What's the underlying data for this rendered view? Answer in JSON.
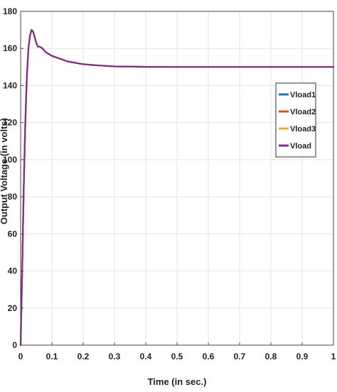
{
  "chart_data": {
    "type": "line",
    "title": "",
    "xlabel": "Time (in sec.)",
    "ylabel": "Output Voltage (in volts)",
    "xlim": [
      0,
      1
    ],
    "ylim": [
      0,
      180
    ],
    "xticks": [
      "0",
      "0.1",
      "0.2",
      "0.3",
      "0.4",
      "0.5",
      "0.6",
      "0.7",
      "0.8",
      "0.9",
      "1"
    ],
    "yticks": [
      "0",
      "20",
      "40",
      "60",
      "80",
      "100",
      "120",
      "140",
      "160",
      "180"
    ],
    "grid": true,
    "legend_position": "right",
    "series": [
      {
        "name": "Vload1",
        "color": "#1f77b4",
        "x": [
          0,
          0.005,
          0.01,
          0.015,
          0.02,
          0.025,
          0.03,
          0.035,
          0.04,
          0.045,
          0.05,
          0.055,
          0.06,
          0.07,
          0.08,
          0.1,
          0.15,
          0.2,
          0.25,
          0.3,
          0.4,
          0.5,
          0.6,
          0.7,
          0.8,
          0.9,
          1.0
        ],
        "y": [
          0,
          40,
          85,
          120,
          145,
          160,
          167,
          170,
          169,
          166,
          163,
          161,
          161,
          160,
          158,
          156,
          153,
          151.5,
          150.8,
          150.3,
          150.1,
          150,
          150,
          150,
          150,
          150,
          150
        ]
      },
      {
        "name": "Vload2",
        "color": "#d95319",
        "x": [
          0,
          0.005,
          0.01,
          0.015,
          0.02,
          0.025,
          0.03,
          0.035,
          0.04,
          0.045,
          0.05,
          0.055,
          0.06,
          0.07,
          0.08,
          0.1,
          0.15,
          0.2,
          0.25,
          0.3,
          0.4,
          0.5,
          0.6,
          0.7,
          0.8,
          0.9,
          1.0
        ],
        "y": [
          0,
          40,
          85,
          120,
          145,
          160,
          167,
          170,
          169,
          166,
          163,
          161,
          161,
          160,
          158,
          156,
          153,
          151.5,
          150.8,
          150.3,
          150.1,
          150,
          150,
          150,
          150,
          150,
          150
        ]
      },
      {
        "name": "Vload3",
        "color": "#edb120",
        "x": [
          0,
          0.005,
          0.01,
          0.015,
          0.02,
          0.025,
          0.03,
          0.035,
          0.04,
          0.045,
          0.05,
          0.055,
          0.06,
          0.07,
          0.08,
          0.1,
          0.15,
          0.2,
          0.25,
          0.3,
          0.4,
          0.5,
          0.6,
          0.7,
          0.8,
          0.9,
          1.0
        ],
        "y": [
          0,
          40,
          85,
          120,
          145,
          160,
          167,
          170,
          169,
          166,
          163,
          161,
          161,
          160,
          158,
          156,
          153,
          151.5,
          150.8,
          150.3,
          150.1,
          150,
          150,
          150,
          150,
          150,
          150
        ]
      },
      {
        "name": "Vload",
        "color": "#7e2f8e",
        "x": [
          0,
          0.005,
          0.01,
          0.015,
          0.02,
          0.025,
          0.03,
          0.035,
          0.04,
          0.045,
          0.05,
          0.055,
          0.06,
          0.07,
          0.08,
          0.1,
          0.15,
          0.2,
          0.25,
          0.3,
          0.4,
          0.5,
          0.6,
          0.7,
          0.8,
          0.9,
          1.0
        ],
        "y": [
          0,
          40,
          85,
          120,
          145,
          160,
          167,
          170,
          169,
          166,
          163,
          161,
          161,
          160,
          158,
          156,
          153,
          151.5,
          150.8,
          150.3,
          150.1,
          150,
          150,
          150,
          150,
          150,
          150
        ]
      }
    ]
  }
}
